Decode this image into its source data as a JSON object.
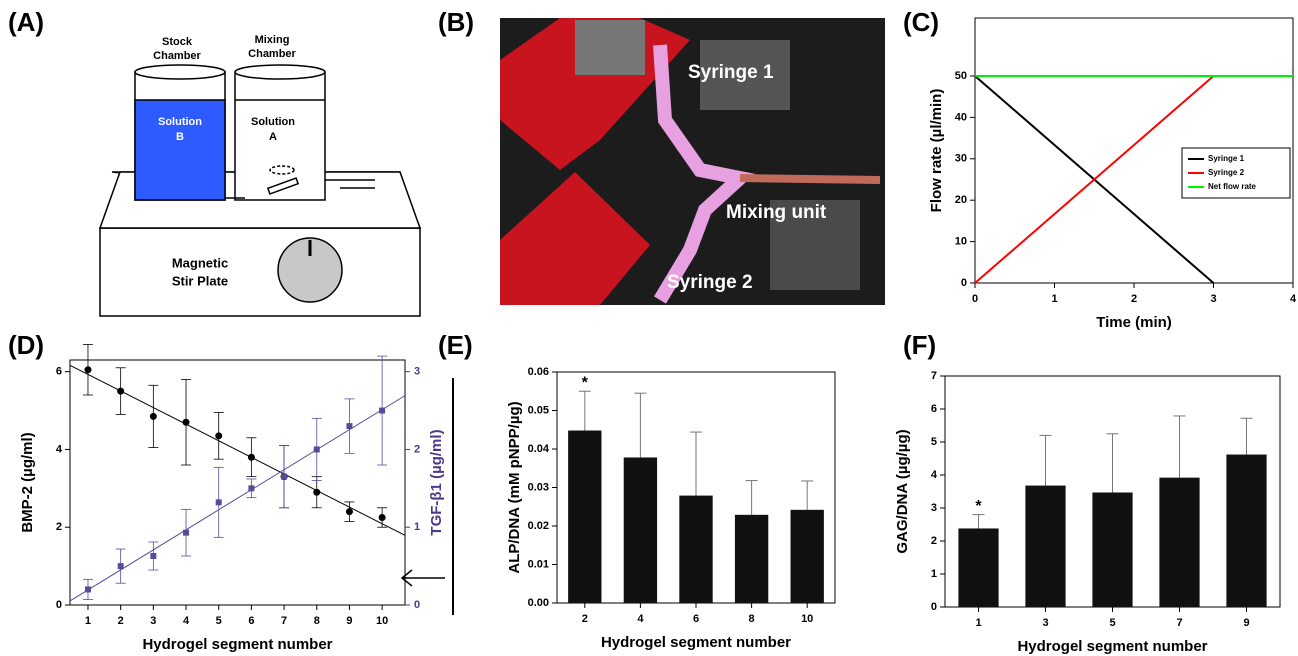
{
  "panel_labels": [
    "(A)",
    "(B)",
    "(C)",
    "(D)",
    "(E)",
    "(F)"
  ],
  "diagram": {
    "stock_chamber": [
      "Stock",
      "Chamber"
    ],
    "mixing_chamber": [
      "Mixing",
      "Chamber"
    ],
    "solution_b": [
      "Solution",
      "B"
    ],
    "solution_a": [
      "Solution",
      "A"
    ],
    "stir_plate": [
      "Magnetic",
      "Stir Plate"
    ]
  },
  "photo": {
    "labels": [
      "Syringe 1",
      "Mixing unit",
      "Syringe 2"
    ]
  },
  "chart_data": [
    {
      "type": "line",
      "x_label": "Time (min)",
      "y_label": "Flow rate (µl/min)",
      "xlim": [
        0,
        4
      ],
      "xticks": [
        0,
        1,
        2,
        3,
        4
      ],
      "ylim": [
        0,
        64
      ],
      "yticks": [
        0,
        10,
        20,
        30,
        40,
        50
      ],
      "legend": "right",
      "series": [
        {
          "name": "Syringe 1",
          "color": "#000000",
          "x": [
            0,
            3
          ],
          "values": [
            50,
            0
          ]
        },
        {
          "name": "Syringe 2",
          "color": "#ff0000",
          "x": [
            0,
            3
          ],
          "values": [
            0,
            50
          ]
        },
        {
          "name": "Net flow rate",
          "color": "#00ee00",
          "x": [
            0,
            4
          ],
          "values": [
            50,
            50
          ]
        }
      ]
    },
    {
      "type": "scatter",
      "x_label": "Hydrogel segment number",
      "y_label": "BMP-2 (µg/ml)",
      "y2_label": "TGF-β1 (µg/ml)",
      "y2_color": "#4b3a8c",
      "x": [
        1,
        2,
        3,
        4,
        5,
        6,
        7,
        8,
        9,
        10
      ],
      "xlim": [
        0.45,
        10.7
      ],
      "xticks": [
        1,
        2,
        3,
        4,
        5,
        6,
        7,
        8,
        9,
        10
      ],
      "ylim": [
        0,
        6.3
      ],
      "yticks": [
        0,
        2,
        4,
        6
      ],
      "y2lim": [
        0,
        3.15
      ],
      "y2ticks": [
        0,
        1,
        2,
        3
      ],
      "trendline": true,
      "series": [
        {
          "color": "#000000",
          "marker": "circle",
          "values": [
            6.05,
            5.5,
            4.85,
            4.7,
            4.35,
            3.8,
            3.3,
            2.9,
            2.4,
            2.25
          ],
          "errors": [
            0.65,
            0.6,
            0.8,
            1.1,
            0.6,
            0.5,
            0.8,
            0.4,
            0.25,
            0.25
          ]
        },
        {
          "color": "#5a4a9a",
          "marker": "square",
          "axis": "y2",
          "values": [
            0.2,
            0.5,
            0.63,
            0.93,
            1.32,
            1.5,
            1.65,
            2.0,
            2.3,
            2.5
          ],
          "errors": [
            0.13,
            0.22,
            0.18,
            0.3,
            0.45,
            0.12,
            0.4,
            0.4,
            0.35,
            0.7
          ]
        }
      ]
    },
    {
      "type": "bar",
      "x_label": "Hydrogel segment number",
      "y_label": "ALP/DNA (mM pNPP/µg)",
      "color": "#111111",
      "categories": [
        "2",
        "4",
        "6",
        "8",
        "10"
      ],
      "values": [
        0.0448,
        0.0378,
        0.0279,
        0.0229,
        0.0242
      ],
      "errors": [
        0.0102,
        0.0167,
        0.0165,
        0.0089,
        0.0075
      ],
      "markers": [
        "*",
        null,
        null,
        null,
        null
      ],
      "ylim": [
        0,
        0.06
      ],
      "yticks": [
        {
          "value": 0,
          "label": "0.00"
        },
        0.01,
        0.02,
        0.03,
        0.04,
        0.05,
        0.06
      ]
    },
    {
      "type": "bar",
      "x_label": "Hydrogel segment number",
      "y_label": "GAG/DNA (µg/µg)",
      "color": "#111111",
      "categories": [
        "1",
        "3",
        "5",
        "7",
        "9"
      ],
      "values": [
        2.38,
        3.68,
        3.47,
        3.92,
        4.62
      ],
      "errors": [
        0.42,
        1.52,
        1.78,
        1.87,
        1.1
      ],
      "markers": [
        "*",
        null,
        null,
        null,
        null
      ],
      "ylim": [
        0,
        7
      ],
      "yticks": [
        0,
        1,
        2,
        3,
        4,
        5,
        6,
        7
      ]
    }
  ]
}
